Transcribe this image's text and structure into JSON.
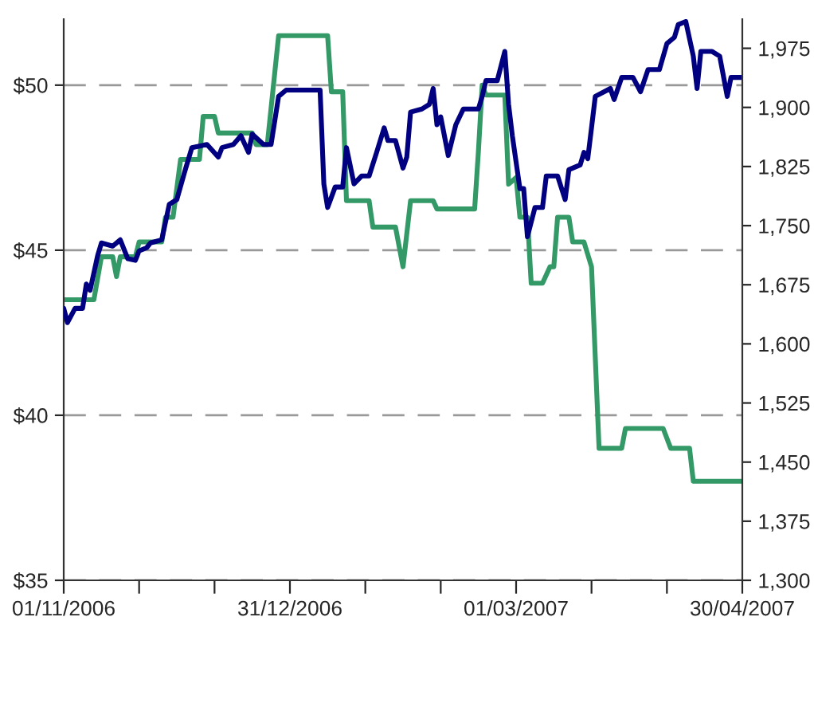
{
  "chart_data": {
    "type": "line",
    "xlim": [
      "2006-11-01",
      "2007-04-30"
    ],
    "xticks": [
      {
        "value": "2006-11-01",
        "label": "01/11/2006"
      },
      {
        "value": "2006-11-21",
        "label": null
      },
      {
        "value": "2006-12-11",
        "label": null
      },
      {
        "value": "2006-12-31",
        "label": "31/12/2006"
      },
      {
        "value": "2007-01-20",
        "label": null
      },
      {
        "value": "2007-02-09",
        "label": null
      },
      {
        "value": "2007-03-01",
        "label": "01/03/2007"
      },
      {
        "value": "2007-03-21",
        "label": null
      },
      {
        "value": "2007-04-10",
        "label": null
      },
      {
        "value": "2007-04-30",
        "label": "30/04/2007"
      }
    ],
    "ylim": [
      35,
      52
    ],
    "yticks": [
      {
        "value": 35,
        "label": "$35"
      },
      {
        "value": 40,
        "label": "$40"
      },
      {
        "value": 45,
        "label": "$45"
      },
      {
        "value": 50,
        "label": "$50"
      }
    ],
    "y2lim": [
      1300,
      2012
    ],
    "y2ticks": [
      {
        "value": 1300,
        "label": "1,300"
      },
      {
        "value": 1375,
        "label": "1,375"
      },
      {
        "value": 1450,
        "label": "1,450"
      },
      {
        "value": 1525,
        "label": "1,525"
      },
      {
        "value": 1600,
        "label": "1,600"
      },
      {
        "value": 1675,
        "label": "1,675"
      },
      {
        "value": 1750,
        "label": "1,750"
      },
      {
        "value": 1825,
        "label": "1,825"
      },
      {
        "value": 1900,
        "label": "1,900"
      },
      {
        "value": 1975,
        "label": "1,975"
      }
    ],
    "grid": "y",
    "line_style": "solid",
    "marker": "none",
    "series": [
      {
        "color": "#339966",
        "x": [
          "2006-11-01",
          "2006-11-09",
          "2006-11-11",
          "2006-11-14",
          "2006-11-15",
          "2006-11-16",
          "2006-11-20",
          "2006-11-21",
          "2006-11-27",
          "2006-11-28",
          "2006-11-30",
          "2006-12-02",
          "2006-12-07",
          "2006-12-08",
          "2006-12-11",
          "2006-12-12",
          "2006-12-21",
          "2006-12-22",
          "2006-12-25",
          "2006-12-28",
          "2007-01-10",
          "2007-01-11",
          "2007-01-14",
          "2007-01-15",
          "2007-01-21",
          "2007-01-22",
          "2007-01-28",
          "2007-01-30",
          "2007-02-01",
          "2007-02-07",
          "2007-02-08",
          "2007-02-18",
          "2007-02-19",
          "2007-02-20",
          "2007-02-21",
          "2007-02-26",
          "2007-02-27",
          "2007-03-01",
          "2007-03-02",
          "2007-03-04",
          "2007-03-05",
          "2007-03-08",
          "2007-03-10",
          "2007-03-11",
          "2007-03-12",
          "2007-03-15",
          "2007-03-16",
          "2007-03-19",
          "2007-03-21",
          "2007-03-23",
          "2007-03-29",
          "2007-03-30",
          "2007-04-09",
          "2007-04-11",
          "2007-04-16",
          "2007-04-17",
          "2007-04-30"
        ],
        "values": [
          43.5,
          43.5,
          44.8,
          44.8,
          44.2,
          44.8,
          44.8,
          45.25,
          45.25,
          46.0,
          46.0,
          47.75,
          47.75,
          49.05,
          49.05,
          48.55,
          48.55,
          48.2,
          48.2,
          51.5,
          51.5,
          49.8,
          49.8,
          46.5,
          46.5,
          45.7,
          45.7,
          44.5,
          46.5,
          46.5,
          46.25,
          46.25,
          48.0,
          50.0,
          49.7,
          49.7,
          47.0,
          47.2,
          46.0,
          46.0,
          44.0,
          44.0,
          44.5,
          44.5,
          46.0,
          46.0,
          45.25,
          45.25,
          44.5,
          39.0,
          39.0,
          39.6,
          39.6,
          39.0,
          39.0,
          38.0,
          38.0
        ]
      },
      {
        "color": "#000080",
        "axis": "y2",
        "x": [
          "2006-11-01",
          "2006-11-02",
          "2006-11-04",
          "2006-11-06",
          "2006-11-07",
          "2006-11-08",
          "2006-11-10",
          "2006-11-11",
          "2006-11-14",
          "2006-11-16",
          "2006-11-18",
          "2006-11-20",
          "2006-11-21",
          "2006-11-23",
          "2006-11-24",
          "2006-11-27",
          "2006-11-29",
          "2006-12-01",
          "2006-12-03",
          "2006-12-05",
          "2006-12-09",
          "2006-12-12",
          "2006-12-13",
          "2006-12-16",
          "2006-12-18",
          "2006-12-20",
          "2006-12-21",
          "2006-12-24",
          "2006-12-26",
          "2006-12-28",
          "2006-12-30",
          "2007-01-08",
          "2007-01-09",
          "2007-01-10",
          "2007-01-12",
          "2007-01-14",
          "2007-01-15",
          "2007-01-17",
          "2007-01-19",
          "2007-01-21",
          "2007-01-23",
          "2007-01-25",
          "2007-01-26",
          "2007-01-28",
          "2007-01-30",
          "2007-01-31",
          "2007-02-01",
          "2007-02-04",
          "2007-02-06",
          "2007-02-07",
          "2007-02-08",
          "2007-02-09",
          "2007-02-11",
          "2007-02-13",
          "2007-02-15",
          "2007-02-19",
          "2007-02-20",
          "2007-02-21",
          "2007-02-24",
          "2007-02-26",
          "2007-02-27",
          "2007-02-28",
          "2007-03-02",
          "2007-03-03",
          "2007-03-04",
          "2007-03-06",
          "2007-03-08",
          "2007-03-09",
          "2007-03-12",
          "2007-03-14",
          "2007-03-15",
          "2007-03-18",
          "2007-03-19",
          "2007-03-20",
          "2007-03-21",
          "2007-03-22",
          "2007-03-26",
          "2007-03-27",
          "2007-03-29",
          "2007-04-01",
          "2007-04-03",
          "2007-04-05",
          "2007-04-08",
          "2007-04-10",
          "2007-04-12",
          "2007-04-13",
          "2007-04-15",
          "2007-04-17",
          "2007-04-18",
          "2007-04-19",
          "2007-04-22",
          "2007-04-24",
          "2007-04-26",
          "2007-04-27",
          "2007-04-30"
        ],
        "values": [
          1645,
          1627,
          1645,
          1645,
          1676,
          1668,
          1712,
          1728,
          1724,
          1732,
          1708,
          1706,
          1718,
          1722,
          1728,
          1732,
          1777,
          1783,
          1817,
          1849,
          1853,
          1837,
          1849,
          1853,
          1864,
          1843,
          1866,
          1853,
          1853,
          1914,
          1922,
          1922,
          1803,
          1773,
          1799,
          1799,
          1849,
          1803,
          1813,
          1813,
          1843,
          1874,
          1858,
          1858,
          1823,
          1837,
          1894,
          1898,
          1904,
          1924,
          1878,
          1888,
          1839,
          1878,
          1898,
          1898,
          1914,
          1934,
          1934,
          1971,
          1904,
          1864,
          1797,
          1797,
          1736,
          1773,
          1773,
          1813,
          1813,
          1783,
          1821,
          1827,
          1843,
          1835,
          1874,
          1914,
          1924,
          1910,
          1938,
          1938,
          1920,
          1948,
          1948,
          1981,
          1989,
          2005,
          2009,
          1965,
          1924,
          1971,
          1971,
          1965,
          1914,
          1938,
          1938
        ]
      }
    ]
  }
}
